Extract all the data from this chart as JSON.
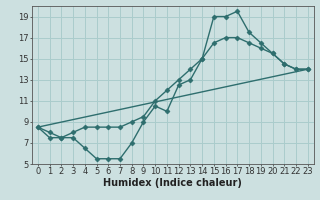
{
  "bg_color": "#cce0e0",
  "grid_color": "#aacccc",
  "line_color": "#2e6e6e",
  "line_width": 1.0,
  "marker": "D",
  "marker_size": 2.5,
  "xlim": [
    -0.5,
    23.5
  ],
  "ylim": [
    5,
    20
  ],
  "xticks": [
    0,
    1,
    2,
    3,
    4,
    5,
    6,
    7,
    8,
    9,
    10,
    11,
    12,
    13,
    14,
    15,
    16,
    17,
    18,
    19,
    20,
    21,
    22,
    23
  ],
  "yticks": [
    5,
    7,
    9,
    11,
    13,
    15,
    17,
    19
  ],
  "xlabel": "Humidex (Indice chaleur)",
  "xlabel_fontsize": 7,
  "tick_fontsize": 6,
  "line1_x": [
    0,
    1,
    2,
    3,
    4,
    5,
    6,
    7,
    8,
    9,
    10,
    11,
    12,
    13,
    14,
    15,
    16,
    17,
    18,
    19,
    20,
    21,
    22,
    23
  ],
  "line1_y": [
    8.5,
    7.5,
    7.5,
    7.5,
    6.5,
    5.5,
    5.5,
    5.5,
    7.0,
    9.0,
    10.5,
    10.0,
    12.5,
    13.0,
    15.0,
    19.0,
    19.0,
    19.5,
    17.5,
    16.5,
    15.5,
    14.5,
    14.0,
    14.0
  ],
  "line2_x": [
    0,
    23
  ],
  "line2_y": [
    8.5,
    14.0
  ],
  "line3_x": [
    0,
    1,
    2,
    3,
    4,
    5,
    6,
    7,
    8,
    9,
    10,
    11,
    12,
    13,
    14,
    15,
    16,
    17,
    18,
    19,
    20,
    21,
    22,
    23
  ],
  "line3_y": [
    8.5,
    8.0,
    7.5,
    8.0,
    8.5,
    8.5,
    8.5,
    8.5,
    9.0,
    9.5,
    11.0,
    12.0,
    13.0,
    14.0,
    15.0,
    16.5,
    17.0,
    17.0,
    16.5,
    16.0,
    15.5,
    14.5,
    14.0,
    14.0
  ]
}
